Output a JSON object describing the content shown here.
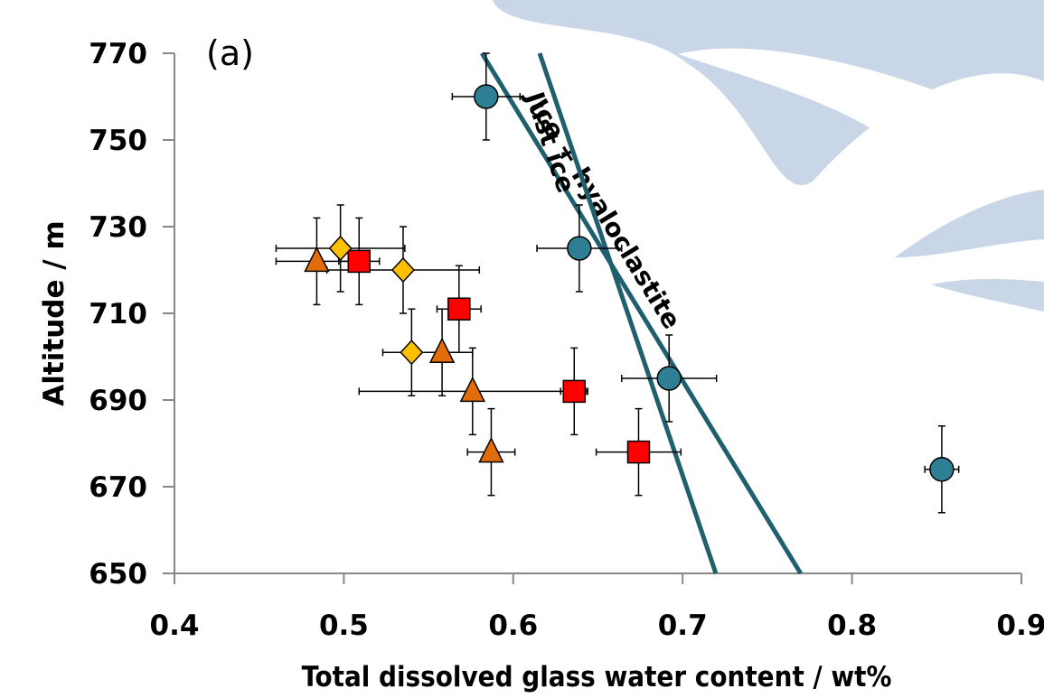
{
  "chart_data": {
    "type": "scatter",
    "annotation": "(a)",
    "xlabel": "Total dissolved glass water content / wt%",
    "ylabel": "Altitude / m",
    "xlim": [
      0.4,
      0.9
    ],
    "xticks": [
      0.4,
      0.5,
      0.6,
      0.7,
      0.8,
      0.9
    ],
    "ylim": [
      650,
      770
    ],
    "yticks": [
      650,
      670,
      690,
      710,
      730,
      750,
      770
    ],
    "series": [
      {
        "marker": "circle",
        "color": "#2e7f93",
        "x": [
          0.584,
          0.639,
          0.692,
          0.853
        ],
        "values": [
          760,
          725,
          695,
          674
        ],
        "xerr": [
          0.02,
          0.025,
          0.028,
          0.01
        ],
        "yerr": [
          10,
          10,
          10,
          10
        ]
      },
      {
        "marker": "square",
        "color": "#ff0000",
        "x": [
          0.509,
          0.568,
          0.636,
          0.674
        ],
        "values": [
          722,
          711,
          692,
          678
        ],
        "xerr": [
          0.012,
          0.013,
          0.008,
          0.025
        ],
        "yerr": [
          10,
          10,
          10,
          10
        ]
      },
      {
        "marker": "triangle",
        "color": "#e36c0a",
        "x": [
          0.484,
          0.558,
          0.576,
          0.587
        ],
        "values": [
          722,
          701,
          692,
          678
        ],
        "xerr": [
          0.024,
          0.018,
          0.067,
          0.014
        ],
        "yerr": [
          10,
          10,
          10,
          10
        ]
      },
      {
        "marker": "diamond",
        "color": "#ffc000",
        "x": [
          0.498,
          0.535,
          0.54
        ],
        "values": [
          725,
          720,
          701
        ],
        "xerr": [
          0.038,
          0.045,
          0.017
        ],
        "yerr": [
          10,
          10,
          10
        ]
      }
    ],
    "lines": [
      {
        "label": "Ice + hyaloclastite",
        "color": "#1f5f6e",
        "x": [
          0.5815,
          0.7697
        ],
        "values": [
          770,
          650
        ]
      },
      {
        "label": "Just ice",
        "color": "#1f5f6e",
        "x": [
          0.6156,
          0.7196
        ],
        "values": [
          770,
          650
        ]
      }
    ]
  }
}
